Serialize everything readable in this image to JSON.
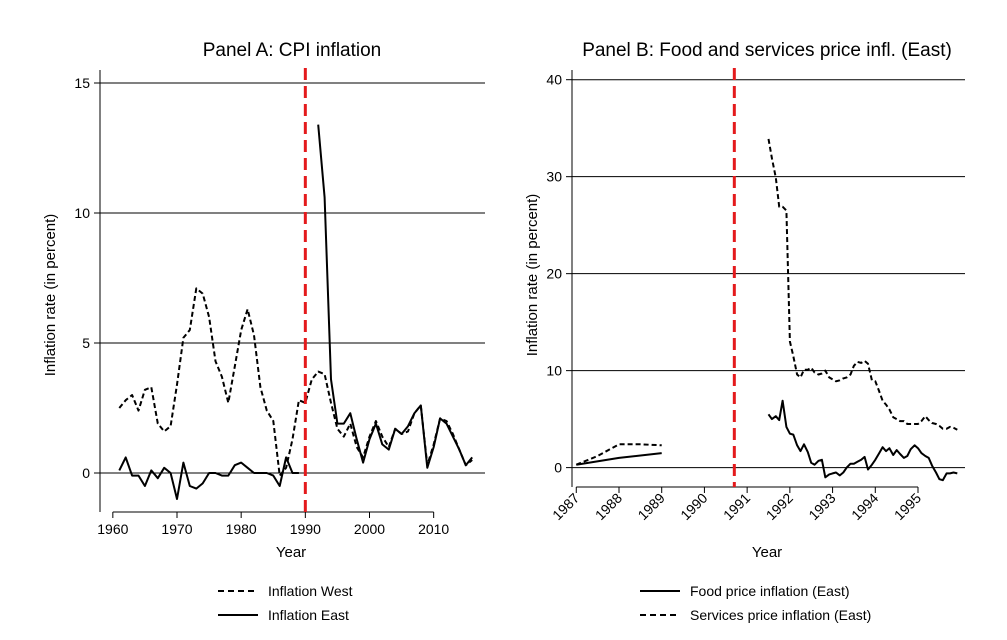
{
  "chart_data": [
    {
      "type": "line",
      "title": "Panel A: CPI inflation",
      "xlabel": "Year",
      "ylabel": "Inflation rate (in percent)",
      "xlim": [
        1958,
        2018
      ],
      "ylim": [
        -1.5,
        15.5
      ],
      "xticks": [
        1960,
        1970,
        1980,
        1990,
        2000,
        2010
      ],
      "yticks": [
        0,
        5,
        10,
        15
      ],
      "grid": "horizontal",
      "vline": {
        "x": 1990,
        "color": "#e41a1c",
        "style": "dashed"
      },
      "series": [
        {
          "name": "Inflation West",
          "style": "dashed",
          "x": [
            1961,
            1962,
            1963,
            1964,
            1965,
            1966,
            1967,
            1968,
            1969,
            1970,
            1971,
            1972,
            1973,
            1974,
            1975,
            1976,
            1977,
            1978,
            1979,
            1980,
            1981,
            1982,
            1983,
            1984,
            1985,
            1986,
            1987,
            1988,
            1989,
            1990,
            1991,
            1992,
            1993,
            1994,
            1995,
            1996,
            1997,
            1998,
            1999,
            2000,
            2001,
            2002,
            2003,
            2004,
            2005,
            2006,
            2007,
            2008,
            2009,
            2010,
            2011,
            2012,
            2013,
            2014,
            2015,
            2016
          ],
          "y": [
            2.5,
            2.8,
            3.0,
            2.4,
            3.2,
            3.3,
            1.9,
            1.6,
            1.8,
            3.4,
            5.2,
            5.5,
            7.1,
            6.9,
            6.0,
            4.3,
            3.7,
            2.7,
            4.1,
            5.5,
            6.3,
            5.3,
            3.3,
            2.4,
            2.0,
            -0.1,
            0.2,
            1.3,
            2.8,
            2.7,
            3.6,
            3.9,
            3.8,
            2.7,
            1.7,
            1.4,
            1.9,
            1.0,
            0.6,
            1.4,
            2.0,
            1.4,
            1.0,
            1.7,
            1.5,
            1.6,
            2.3,
            2.6,
            0.3,
            1.1,
            2.1,
            2.0,
            1.5,
            0.9,
            0.3,
            0.5
          ]
        },
        {
          "name": "Inflation East",
          "style": "solid",
          "x": [
            1961,
            1962,
            1963,
            1964,
            1965,
            1966,
            1967,
            1968,
            1969,
            1970,
            1971,
            1972,
            1973,
            1974,
            1975,
            1976,
            1977,
            1978,
            1979,
            1980,
            1981,
            1982,
            1983,
            1984,
            1985,
            1986,
            1987,
            1988,
            1989
          ],
          "y": [
            0.1,
            0.6,
            -0.1,
            -0.1,
            -0.5,
            0.1,
            -0.2,
            0.2,
            0.0,
            -1.0,
            0.4,
            -0.5,
            -0.6,
            -0.4,
            0.0,
            0.0,
            -0.1,
            -0.1,
            0.3,
            0.4,
            0.2,
            0.0,
            0.0,
            0.0,
            -0.1,
            -0.5,
            0.6,
            0.0,
            0.0
          ],
          "x2": [
            1992,
            1993,
            1994,
            1995,
            1996,
            1997,
            1998,
            1999,
            2000,
            2001,
            2002,
            2003,
            2004,
            2005,
            2006,
            2007,
            2008,
            2009,
            2010,
            2011,
            2012,
            2013,
            2014,
            2015,
            2016
          ],
          "y2": [
            13.4,
            10.6,
            3.6,
            1.9,
            1.9,
            2.3,
            1.3,
            0.4,
            1.3,
            1.9,
            1.1,
            0.9,
            1.7,
            1.5,
            1.8,
            2.3,
            2.6,
            0.2,
            1.0,
            2.1,
            1.9,
            1.4,
            0.9,
            0.3,
            0.6
          ]
        }
      ],
      "legend": {
        "placement": "bottom",
        "items": [
          {
            "label": "Inflation West",
            "style": "dashed"
          },
          {
            "label": "Inflation East",
            "style": "solid"
          }
        ]
      }
    },
    {
      "type": "line",
      "title": "Panel B: Food and services price infl. (East)",
      "xlabel": "Year",
      "ylabel": "Inflation rate (in percent)",
      "xlim": [
        1986.9,
        1996.1
      ],
      "ylim": [
        -2,
        41
      ],
      "xticks": [
        1987,
        1988,
        1989,
        1990,
        1991,
        1992,
        1993,
        1994,
        1995
      ],
      "xtick_labels": [
        "1987",
        "1988",
        "1989",
        "1990",
        "1991",
        "1992",
        "1993",
        "1994",
        "1995"
      ],
      "yticks": [
        0,
        10,
        20,
        30,
        40
      ],
      "grid": "horizontal",
      "vline": {
        "x": 1990.7,
        "color": "#e41a1c",
        "style": "dashed"
      },
      "series": [
        {
          "name": "Food price inflation (East)",
          "style": "solid",
          "x": [
            1987,
            1988,
            1989
          ],
          "y": [
            0.3,
            1.0,
            1.5
          ],
          "x2": [
            1991.5,
            1991.58,
            1991.67,
            1991.75,
            1991.83,
            1991.92,
            1992,
            1992.08,
            1992.17,
            1992.25,
            1992.33,
            1992.42,
            1992.5,
            1992.58,
            1992.67,
            1992.75,
            1992.83,
            1992.92,
            1993,
            1993.08,
            1993.17,
            1993.25,
            1993.33,
            1993.42,
            1993.5,
            1993.58,
            1993.67,
            1993.75,
            1993.83,
            1993.92,
            1994,
            1994.08,
            1994.17,
            1994.25,
            1994.33,
            1994.42,
            1994.5,
            1994.58,
            1994.67,
            1994.75,
            1994.83,
            1994.92,
            1995,
            1995.08,
            1995.17,
            1995.25,
            1995.33,
            1995.42,
            1995.5,
            1995.58,
            1995.67,
            1995.75,
            1995.83,
            1995.92
          ],
          "y2": [
            5.5,
            5.0,
            5.3,
            4.9,
            6.9,
            4.2,
            3.5,
            3.4,
            2.3,
            1.7,
            2.4,
            1.6,
            0.5,
            0.3,
            0.7,
            0.8,
            -1.0,
            -0.7,
            -0.6,
            -0.5,
            -0.8,
            -0.5,
            0.0,
            0.4,
            0.4,
            0.6,
            0.8,
            1.1,
            -0.2,
            0.3,
            0.8,
            1.4,
            2.1,
            1.7,
            2.0,
            1.3,
            1.8,
            1.4,
            1.0,
            1.2,
            1.9,
            2.3,
            2.0,
            1.5,
            1.2,
            1.0,
            0.2,
            -0.5,
            -1.2,
            -1.3,
            -0.6,
            -0.6,
            -0.5,
            -0.6
          ]
        },
        {
          "name": "Services price inflation (East)",
          "style": "dashed",
          "x": [
            1987,
            1987.5,
            1988,
            1988.5,
            1989
          ],
          "y": [
            0.3,
            1.2,
            2.4,
            2.4,
            2.3
          ],
          "x2": [
            1991.5,
            1991.58,
            1991.67,
            1991.75,
            1991.83,
            1991.92,
            1992,
            1992.08,
            1992.17,
            1992.25,
            1992.33,
            1992.42,
            1992.5,
            1992.58,
            1992.67,
            1992.75,
            1992.83,
            1992.92,
            1993,
            1993.08,
            1993.17,
            1993.25,
            1993.33,
            1993.42,
            1993.5,
            1993.58,
            1993.67,
            1993.75,
            1993.83,
            1993.92,
            1994,
            1994.08,
            1994.17,
            1994.25,
            1994.33,
            1994.42,
            1994.5,
            1994.58,
            1994.67,
            1994.75,
            1994.83,
            1994.92,
            1995,
            1995.08,
            1995.17,
            1995.25,
            1995.33,
            1995.42,
            1995.5,
            1995.58,
            1995.67,
            1995.75,
            1995.83,
            1995.92
          ],
          "y2": [
            33.9,
            31.9,
            29.9,
            26.9,
            26.9,
            26.5,
            13.0,
            11.5,
            9.6,
            9.3,
            10.1,
            10.1,
            10.3,
            9.8,
            9.6,
            9.7,
            10.0,
            9.3,
            9.1,
            8.9,
            9.0,
            9.2,
            9.3,
            9.6,
            10.5,
            10.9,
            10.8,
            11.0,
            10.7,
            9.0,
            8.9,
            8.0,
            6.9,
            6.5,
            6.0,
            5.2,
            5.0,
            4.8,
            4.8,
            4.5,
            4.5,
            4.5,
            4.5,
            4.8,
            5.3,
            4.9,
            4.6,
            4.5,
            4.3,
            4.0,
            4.0,
            4.2,
            4.1,
            3.9
          ]
        }
      ],
      "legend": {
        "placement": "bottom",
        "items": [
          {
            "label": "Food price inflation (East)",
            "style": "solid"
          },
          {
            "label": "Services price inflation (East)",
            "style": "dashed"
          }
        ]
      }
    }
  ]
}
